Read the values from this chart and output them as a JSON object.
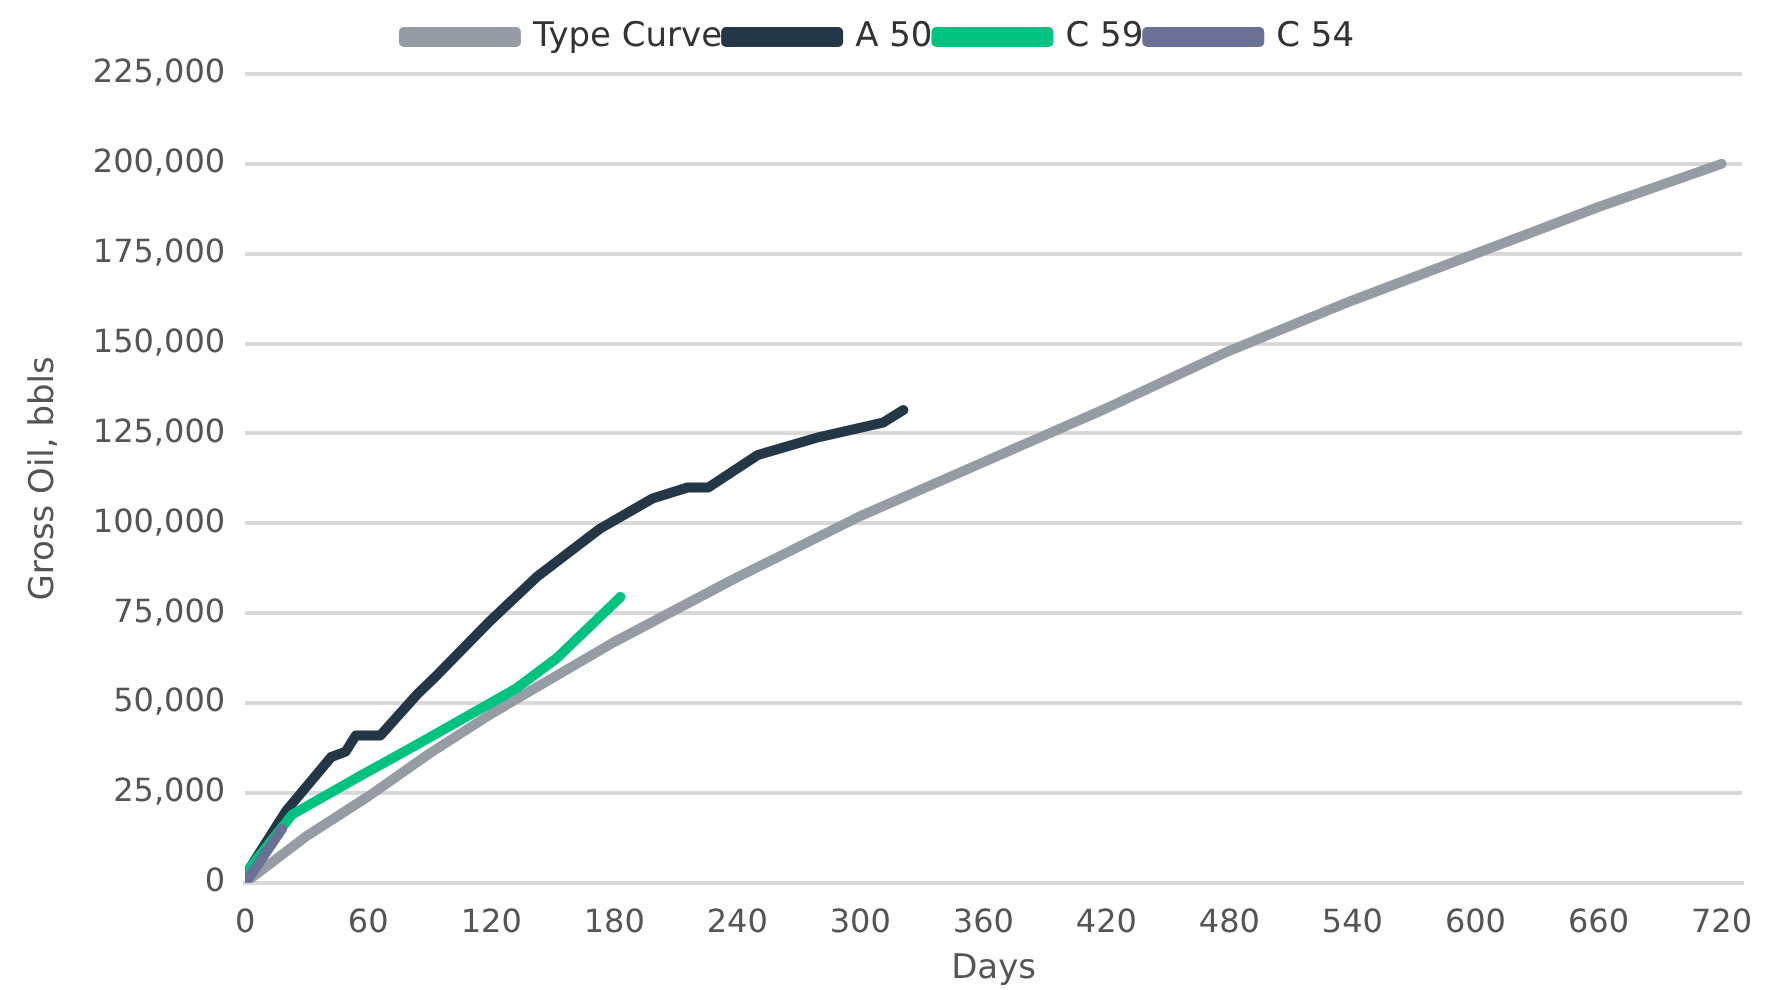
{
  "chart_data": {
    "type": "line",
    "xlabel": "Days",
    "ylabel": "Gross Oil, bbls",
    "xlim": [
      0,
      730
    ],
    "xticks": [
      0,
      60,
      120,
      180,
      240,
      300,
      360,
      420,
      480,
      540,
      600,
      660,
      720
    ],
    "ylim": [
      0,
      225000
    ],
    "yticks": [
      {
        "value": 0,
        "label": "0"
      },
      {
        "value": 25000,
        "label": "25,000"
      },
      {
        "value": 50000,
        "label": "50,000"
      },
      {
        "value": 75000,
        "label": "75,000"
      },
      {
        "value": 100000,
        "label": "100,000"
      },
      {
        "value": 125000,
        "label": "125,000"
      },
      {
        "value": 150000,
        "label": "150,000"
      },
      {
        "value": 175000,
        "label": "175,000"
      },
      {
        "value": 200000,
        "label": "200,000"
      },
      {
        "value": 225000,
        "label": "225,000"
      }
    ],
    "grid": "y",
    "legend": "top",
    "marker": "none",
    "line_style": "solid",
    "series": [
      {
        "name": "Type Curve",
        "color": "#959ca3",
        "x": [
          0,
          30,
          60,
          90,
          120,
          180,
          240,
          300,
          360,
          420,
          480,
          540,
          600,
          660,
          720
        ],
        "values": [
          0,
          13000,
          24000,
          36000,
          47000,
          67000,
          85000,
          102000,
          117000,
          132000,
          148000,
          162000,
          175000,
          188000,
          200000
        ]
      },
      {
        "name": "A 50",
        "color": "#243746",
        "x": [
          0,
          20,
          42,
          49,
          54,
          66,
          84,
          94,
          118,
          142,
          173,
          199,
          216,
          226,
          250,
          280,
          311,
          321
        ],
        "values": [
          2000,
          20000,
          35000,
          36500,
          41000,
          41000,
          52500,
          58000,
          72000,
          85000,
          98500,
          107000,
          110000,
          110000,
          119000,
          124000,
          128000,
          131500
        ]
      },
      {
        "name": "C 59",
        "color": "#00c281",
        "x": [
          0,
          23,
          57,
          84,
          132,
          152,
          183
        ],
        "values": [
          2500,
          19000,
          30000,
          38500,
          54000,
          62500,
          79500
        ]
      },
      {
        "name": "C 54",
        "color": "#6a7194",
        "x": [
          1,
          18
        ],
        "values": [
          700,
          15000
        ]
      }
    ]
  }
}
